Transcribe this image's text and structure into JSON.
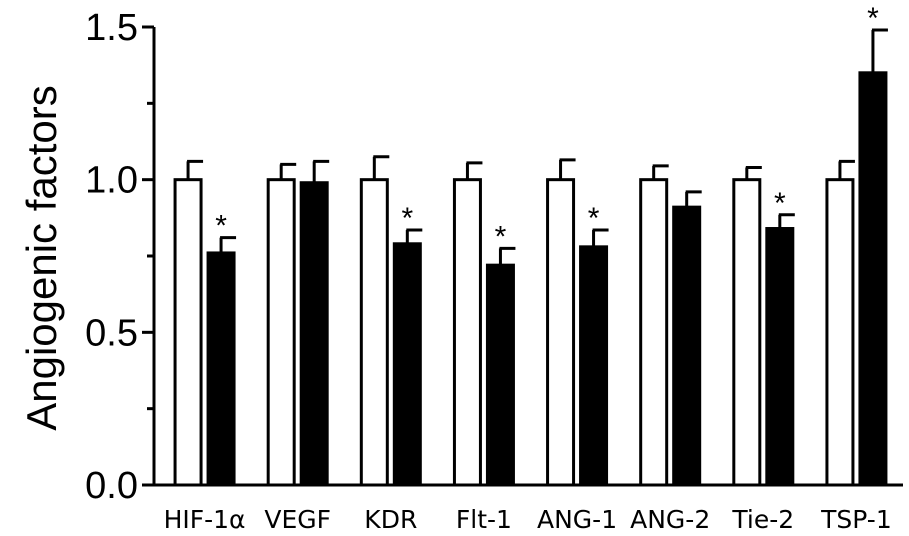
{
  "chart_data": {
    "type": "bar",
    "ylabel": "Angiogenic factors",
    "ylim": [
      0,
      1.5
    ],
    "yticks": [
      0.0,
      0.5,
      1.0,
      1.5
    ],
    "ytick_labels": [
      "0.0",
      "0.5",
      "1.0",
      "1.5"
    ],
    "categories": [
      "HIF-1α",
      "VEGF",
      "KDR",
      "Flt-1",
      "ANG-1",
      "ANG-2",
      "Tie-2",
      "TSP-1"
    ],
    "series": [
      {
        "fill": "#ffffff",
        "values": [
          1.0,
          1.0,
          1.0,
          1.0,
          1.0,
          1.0,
          1.0,
          1.0
        ],
        "errors": [
          0.06,
          0.05,
          0.075,
          0.055,
          0.065,
          0.045,
          0.04,
          0.06
        ],
        "significance": [
          "",
          "",
          "",
          "",
          "",
          "",
          "",
          ""
        ]
      },
      {
        "fill": "#000000",
        "values": [
          0.76,
          0.99,
          0.79,
          0.72,
          0.78,
          0.91,
          0.84,
          1.35
        ],
        "errors": [
          0.05,
          0.07,
          0.045,
          0.055,
          0.055,
          0.05,
          0.045,
          0.14
        ],
        "significance": [
          "*",
          "",
          "*",
          "*",
          "*",
          "",
          "*",
          "*"
        ]
      }
    ],
    "grid": false,
    "legend": "none"
  }
}
